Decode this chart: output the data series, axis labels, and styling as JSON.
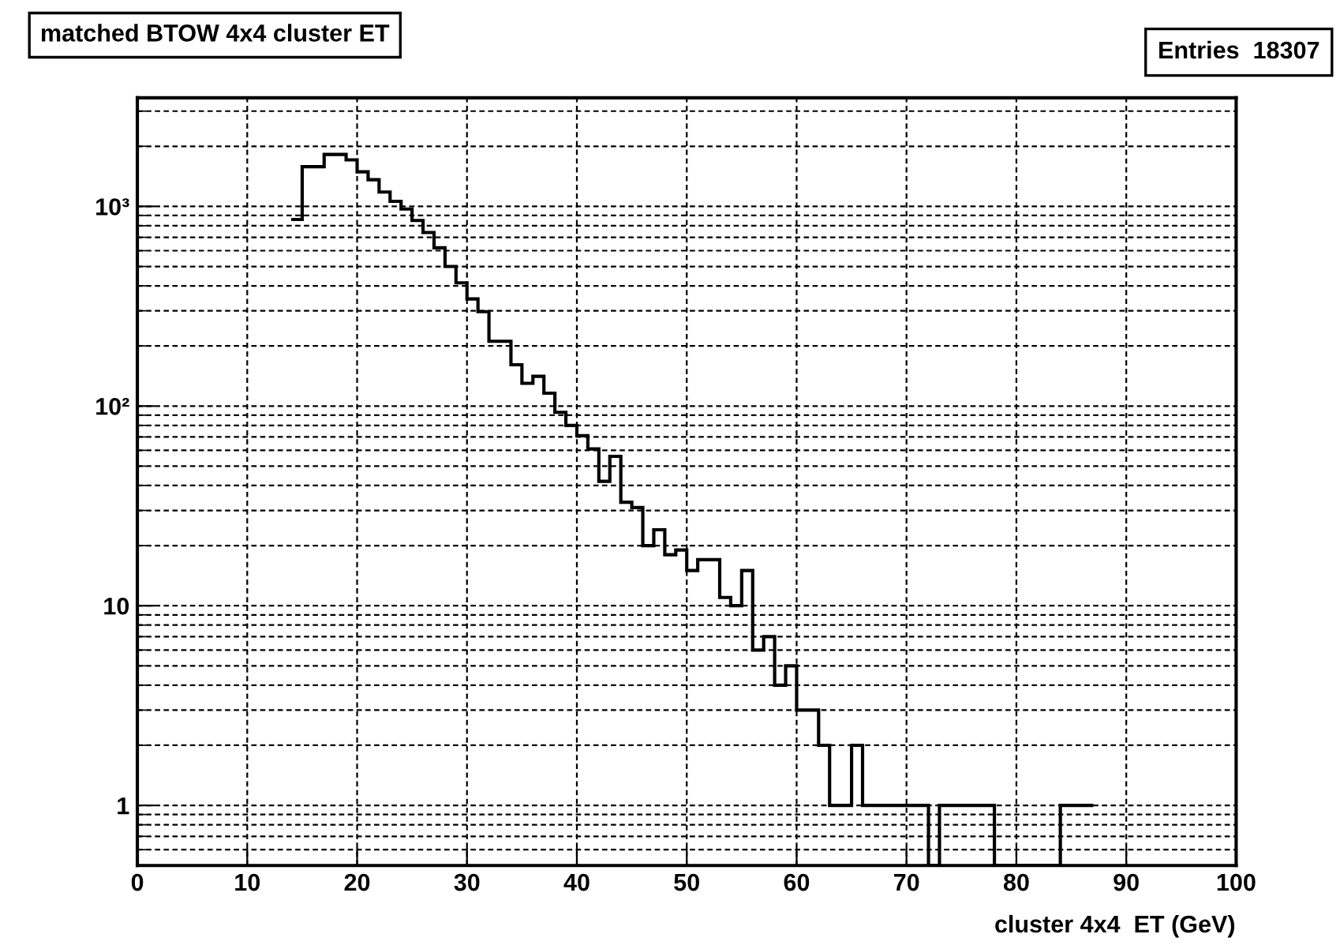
{
  "chart_data": {
    "type": "histogram",
    "title": "matched BTOW 4x4 cluster ET",
    "xlabel": "cluster 4x4  ET (GeV)",
    "annotations": [
      "Entries  18307"
    ],
    "bins": [
      14,
      15,
      16,
      17,
      18,
      19,
      20,
      21,
      22,
      23,
      24,
      25,
      26,
      27,
      28,
      29,
      30,
      31,
      32,
      33,
      34,
      35,
      36,
      37,
      38,
      39,
      40,
      41,
      42,
      43,
      44,
      45,
      46,
      47,
      48,
      49,
      50,
      51,
      52,
      53,
      54,
      55,
      56,
      57,
      58,
      59,
      60,
      61,
      62,
      63,
      64,
      65,
      66,
      67,
      68,
      69,
      70,
      71,
      72,
      73,
      74,
      75,
      76,
      77,
      78,
      79,
      80,
      81,
      82,
      83,
      84,
      85,
      86,
      87
    ],
    "values": [
      860,
      1580,
      1580,
      1820,
      1820,
      1710,
      1490,
      1360,
      1180,
      1060,
      970,
      850,
      740,
      620,
      500,
      414,
      344,
      297,
      211,
      211,
      161,
      130,
      141,
      116,
      93,
      80,
      71,
      61,
      42,
      56,
      33,
      31,
      20,
      24,
      18,
      19,
      15,
      17,
      17,
      11,
      10,
      15,
      6,
      7,
      4,
      5,
      3,
      3,
      2,
      1,
      1,
      2,
      1,
      1,
      1,
      1,
      1,
      1,
      null,
      1,
      1,
      1,
      1,
      1,
      null,
      null,
      null,
      null,
      null,
      null,
      1,
      1,
      1
    ],
    "color": "#000000",
    "log": "y",
    "grid": true,
    "legend": false,
    "xlim": [
      0,
      100
    ],
    "xticks": [
      0,
      10,
      20,
      30,
      40,
      50,
      60,
      70,
      80,
      90,
      100
    ],
    "ylim": [
      0.5,
      3500
    ],
    "yticks": [
      1,
      10,
      {
        "value": 100,
        "label": "10²"
      },
      {
        "value": 1000,
        "label": "10³"
      }
    ]
  }
}
